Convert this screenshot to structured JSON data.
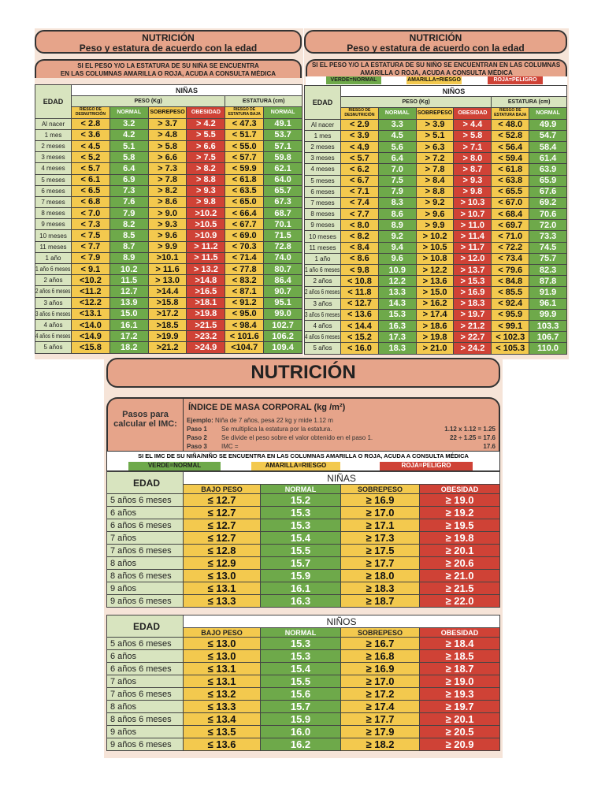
{
  "colors": {
    "normal": "#6ea94a",
    "riesgo": "#f3c94e",
    "peligro": "#cf4236",
    "header": "#e6a48a",
    "edad": "#d8e4bf"
  },
  "ninas_panel": {
    "title": "NUTRICIÓN",
    "subtitle": "Peso y estatura de acuerdo con la edad",
    "warning1": "SI EL PESO Y/O LA ESTATURA DE SU NIÑA SE ENCUENTRA",
    "warning2": "EN LAS COLUMNAS AMARILLA O ROJA, ACUDA A CONSULTA MÉDICA",
    "group": "NIÑAS",
    "edad": "EDAD",
    "peso": "PESO (Kg)",
    "estatura": "ESTATURA (cm)",
    "columns": [
      "RIESGO DE DESNUTRICIÓN",
      "NORMAL",
      "SOBREPESO",
      "OBESIDAD",
      "RIESGO DE ESTATURA BAJA",
      "NORMAL"
    ],
    "rows": [
      [
        "Al nacer",
        "< 2.8",
        "3.2",
        "> 3.7",
        "> 4.2",
        "< 47.3",
        "49.1"
      ],
      [
        "1 mes",
        "< 3.6",
        "4.2",
        "> 4.8",
        "> 5.5",
        "< 51.7",
        "53.7"
      ],
      [
        "2 meses",
        "< 4.5",
        "5.1",
        "> 5.8",
        "> 6.6",
        "< 55.0",
        "57.1"
      ],
      [
        "3 meses",
        "< 5.2",
        "5.8",
        "> 6.6",
        "> 7.5",
        "< 57.7",
        "59.8"
      ],
      [
        "4 meses",
        "< 5.7",
        "6.4",
        "> 7.3",
        "> 8.2",
        "< 59.9",
        "62.1"
      ],
      [
        "5 meses",
        "< 6.1",
        "6.9",
        "> 7.8",
        "> 8.8",
        "< 61.8",
        "64.0"
      ],
      [
        "6 meses",
        "< 6.5",
        "7.3",
        "> 8.2",
        "> 9.3",
        "< 63.5",
        "65.7"
      ],
      [
        "7 meses",
        "< 6.8",
        "7.6",
        "> 8.6",
        "> 9.8",
        "< 65.0",
        "67.3"
      ],
      [
        "8 meses",
        "< 7.0",
        "7.9",
        "> 9.0",
        ">10.2",
        "< 66.4",
        "68.7"
      ],
      [
        "9 meses",
        "< 7.3",
        "8.2",
        "> 9.3",
        ">10.5",
        "< 67.7",
        "70.1"
      ],
      [
        "10 meses",
        "< 7.5",
        "8.5",
        "> 9.6",
        ">10.9",
        "< 69.0",
        "71.5"
      ],
      [
        "11 meses",
        "< 7.7",
        "8.7",
        "> 9.9",
        "> 11.2",
        "< 70.3",
        "72.8"
      ],
      [
        "1 año",
        "< 7.9",
        "8.9",
        ">10.1",
        "> 11.5",
        "< 71.4",
        "74.0"
      ],
      [
        "1 año 6 meses",
        "< 9.1",
        "10.2",
        "> 11.6",
        "> 13.2",
        "< 77.8",
        "80.7"
      ],
      [
        "2 años",
        "<10.2",
        "11.5",
        "> 13.0",
        ">14.8",
        "< 83.2",
        "86.4"
      ],
      [
        "2 años 6 meses",
        "<11.2",
        "12.7",
        ">14.4",
        ">16.5",
        "< 87.1",
        "90.7"
      ],
      [
        "3 años",
        "<12.2",
        "13.9",
        ">15.8",
        ">18.1",
        "< 91.2",
        "95.1"
      ],
      [
        "3 años 6 meses",
        "<13.1",
        "15.0",
        ">17.2",
        ">19.8",
        "< 95.0",
        "99.0"
      ],
      [
        "4 años",
        "<14.0",
        "16.1",
        ">18.5",
        ">21.5",
        "< 98.4",
        "102.7"
      ],
      [
        "4 años 6 meses",
        "<14.9",
        "17.2",
        ">19.9",
        ">23.2",
        "< 101.6",
        "106.2"
      ],
      [
        "5 años",
        "<15.8",
        "18.2",
        ">21.2",
        ">24.9",
        "<104.7",
        "109.4"
      ]
    ]
  },
  "ninos_panel": {
    "title": "NUTRICIÓN",
    "subtitle": "Peso y estatura de acuerdo con la edad",
    "warning1": "SI EL PESO Y/O LA ESTATURA DE SU NIÑO SE ENCUENTRAN EN LAS COLUMNAS",
    "warning2": "AMARILLA O ROJA, ACUDA A CONSULTA MÉDICA",
    "legend": {
      "normal": "VERDE=NORMAL",
      "riesgo": "AMARILLA=RIESGO",
      "peligro": "ROJA=PELIGRO"
    },
    "group": "NIÑOS",
    "edad": "EDAD",
    "peso": "PESO (Kg)",
    "estatura": "ESTATURA (cm)",
    "columns": [
      "RIESGO DE DESNUTRICIÓN",
      "NORMAL",
      "SOBREPESO",
      "OBESIDAD",
      "RIESGO DE ESTATURA BAJA",
      "NORMAL"
    ],
    "rows": [
      [
        "Al nacer",
        "< 2.9",
        "3.3",
        "> 3.9",
        "> 4.4",
        "< 48.0",
        "49.9"
      ],
      [
        "1 mes",
        "< 3.9",
        "4.5",
        "> 5.1",
        "> 5.8",
        "< 52.8",
        "54.7"
      ],
      [
        "2 meses",
        "< 4.9",
        "5.6",
        "> 6.3",
        "> 7.1",
        "< 56.4",
        "58.4"
      ],
      [
        "3 meses",
        "< 5.7",
        "6.4",
        "> 7.2",
        "> 8.0",
        "< 59.4",
        "61.4"
      ],
      [
        "4 meses",
        "< 6.2",
        "7.0",
        "> 7.8",
        "> 8.7",
        "< 61.8",
        "63.9"
      ],
      [
        "5 meses",
        "< 6.7",
        "7.5",
        "> 8.4",
        "> 9.3",
        "< 63.8",
        "65.9"
      ],
      [
        "6 meses",
        "< 7.1",
        "7.9",
        "> 8.8",
        "> 9.8",
        "< 65.5",
        "67.6"
      ],
      [
        "7 meses",
        "< 7.4",
        "8.3",
        "> 9.2",
        "> 10.3",
        "< 67.0",
        "69.2"
      ],
      [
        "8 meses",
        "< 7.7",
        "8.6",
        "> 9.6",
        "> 10.7",
        "< 68.4",
        "70.6"
      ],
      [
        "9 meses",
        "< 8.0",
        "8.9",
        "> 9.9",
        "> 11.0",
        "< 69.7",
        "72.0"
      ],
      [
        "10 meses",
        "< 8.2",
        "9.2",
        "> 10.2",
        "> 11.4",
        "< 71.0",
        "73.3"
      ],
      [
        "11 meses",
        "< 8.4",
        "9.4",
        "> 10.5",
        "> 11.7",
        "< 72.2",
        "74.5"
      ],
      [
        "1 año",
        "< 8.6",
        "9.6",
        "> 10.8",
        "> 12.0",
        "< 73.4",
        "75.7"
      ],
      [
        "1 año 6 meses",
        "< 9.8",
        "10.9",
        "> 12.2",
        "> 13.7",
        "< 79.6",
        "82.3"
      ],
      [
        "2 años",
        "< 10.8",
        "12.2",
        "> 13.6",
        "> 15.3",
        "< 84.8",
        "87.8"
      ],
      [
        "2 años 6 meses",
        "< 11.8",
        "13.3",
        "> 15.0",
        "> 16.9",
        "< 85.5",
        "91.9"
      ],
      [
        "3 años",
        "< 12.7",
        "14.3",
        "> 16.2",
        "> 18.3",
        "< 92.4",
        "96.1"
      ],
      [
        "3 años 6 meses",
        "< 13.6",
        "15.3",
        "> 17.4",
        "> 19.7",
        "< 95.9",
        "99.9"
      ],
      [
        "4 años",
        "< 14.4",
        "16.3",
        "> 18.6",
        "> 21.2",
        "< 99.1",
        "103.3"
      ],
      [
        "4 años 6 meses",
        "< 15.2",
        "17.3",
        "> 19.8",
        "> 22.7",
        "< 102.3",
        "106.7"
      ],
      [
        "5 años",
        "< 16.0",
        "18.3",
        "> 21.0",
        "> 24.2",
        "< 105.3",
        "110.0"
      ]
    ]
  },
  "imc": {
    "banner": "NUTRICIÓN",
    "pasos": "Pasos para calcular el IMC:",
    "title": "ÍNDICE DE MASA CORPORAL (kg /m²)",
    "ejemplo_label": "Ejemplo:",
    "ejemplo": "Niña de 7 años, pesa 22 kg y mide 1.12 m",
    "steps": [
      {
        "label": "Paso 1",
        "text": "Se multiplica la estatura por la estatura.",
        "result": "1.12 x 1.12 = 1.25"
      },
      {
        "label": "Paso 2",
        "text": "Se divide el peso sobre el valor obtenido en el paso 1.",
        "result": "22 ÷ 1.25 = 17.6"
      },
      {
        "label": "Paso 3",
        "text": "IMC =",
        "result": "17.6"
      }
    ],
    "warning": "SI EL IMC DE SU NIÑA/NIÑO SE ENCUENTRA EN LAS COLUMNAS AMARILLA O ROJA, ACUDA A CONSULTA MÉDICA",
    "legend": {
      "normal": "VERDE=NORMAL",
      "riesgo": "AMARILLA=RIESGO",
      "peligro": "ROJA=PELIGRO"
    },
    "columns": [
      "BAJO PESO",
      "NORMAL",
      "SOBREPESO",
      "OBESIDAD"
    ],
    "edad": "EDAD",
    "ninas": {
      "group": "NIÑAS",
      "rows": [
        [
          "5  años 6 meses",
          "≤ 12.7",
          "15.2",
          "≥ 16.9",
          "≥ 19.0"
        ],
        [
          "6 años",
          "≤ 12.7",
          "15.3",
          "≥ 17.0",
          "≥ 19.2"
        ],
        [
          "6 años 6 meses",
          "≤ 12.7",
          "15.3",
          "≥ 17.1",
          "≥ 19.5"
        ],
        [
          "7 años",
          "≤ 12.7",
          "15.4",
          "≥ 17.3",
          "≥ 19.8"
        ],
        [
          "7 años 6 meses",
          "≤ 12.8",
          "15.5",
          "≥ 17.5",
          "≥ 20.1"
        ],
        [
          "8 años",
          "≤ 12.9",
          "15.7",
          "≥ 17.7",
          "≥ 20.6"
        ],
        [
          "8 años 6 meses",
          "≤ 13.0",
          "15.9",
          "≥ 18.0",
          "≥ 21.0"
        ],
        [
          "9 años",
          "≤ 13.1",
          "16.1",
          "≥ 18.3",
          "≥ 21.5"
        ],
        [
          "9 años 6 meses",
          "≤ 13.3",
          "16.3",
          "≥ 18.7",
          "≥ 22.0"
        ]
      ]
    },
    "ninos": {
      "group": "NIÑOS",
      "rows": [
        [
          "5 años 6 meses",
          "≤ 13.0",
          "15.3",
          "≥ 16.7",
          "≥ 18.4"
        ],
        [
          "6 años",
          "≤ 13.0",
          "15.3",
          "≥ 16.8",
          "≥ 18.5"
        ],
        [
          "6 años 6 meses",
          "≤ 13.1",
          "15.4",
          "≥ 16.9",
          "≥ 18.7"
        ],
        [
          "7 años",
          "≤ 13.1",
          "15.5",
          "≥ 17.0",
          "≥ 19.0"
        ],
        [
          "7 años 6 meses",
          "≤ 13.2",
          "15.6",
          "≥ 17.2",
          "≥ 19.3"
        ],
        [
          "8 años",
          "≤ 13.3",
          "15.7",
          "≥ 17.4",
          "≥ 19.7"
        ],
        [
          "8 años 6 meses",
          "≤ 13.4",
          "15.9",
          "≥ 17.7",
          "≥ 20.1"
        ],
        [
          "9 años",
          "≤ 13.5",
          "16.0",
          "≥ 17.9",
          "≥ 20.5"
        ],
        [
          "9 años 6 meses",
          "≤ 13.6",
          "16.2",
          "≥ 18.2",
          "≥ 20.9"
        ]
      ]
    }
  }
}
